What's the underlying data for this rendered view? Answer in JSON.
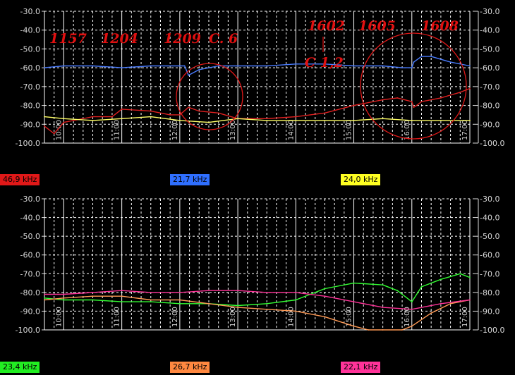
{
  "chart_data": [
    {
      "type": "line",
      "panel": "top",
      "ylim": [
        -100,
        -30
      ],
      "yticks": [
        "-30.0",
        "-40.0",
        "-50.0",
        "-60.0",
        "-70.0",
        "-80.0",
        "-90.0",
        "-100.0"
      ],
      "x_range": [
        "09:40",
        "17:00"
      ],
      "xticks": [
        "10:00",
        "11:00",
        "12:00",
        "13:00",
        "14:00",
        "15:00",
        "16:00",
        "17:00"
      ],
      "grid": true,
      "series": [
        {
          "name": "46,9 kHz",
          "color": "#e02020",
          "x": [
            "09:40",
            "09:50",
            "10:00",
            "10:10",
            "10:30",
            "10:50",
            "11:00",
            "11:30",
            "11:50",
            "12:00",
            "12:09",
            "12:20",
            "12:40",
            "13:00",
            "13:30",
            "14:00",
            "14:30",
            "15:00",
            "15:30",
            "15:45",
            "16:00",
            "16:02",
            "16:05",
            "16:10",
            "16:30",
            "16:50",
            "17:00"
          ],
          "y": [
            -91,
            -95,
            -89,
            -88,
            -86,
            -86,
            -82,
            -83,
            -85,
            -85,
            -81,
            -83,
            -84,
            -87,
            -87,
            -86,
            -84,
            -80,
            -77,
            -76,
            -78,
            -81,
            -80,
            -78,
            -76,
            -73,
            -71
          ]
        },
        {
          "name": "21,7 kHz",
          "color": "#4a7cff",
          "x": [
            "09:40",
            "10:00",
            "10:30",
            "11:00",
            "11:30",
            "12:00",
            "12:05",
            "12:09",
            "12:20",
            "12:40",
            "13:00",
            "13:30",
            "14:00",
            "14:30",
            "15:00",
            "15:30",
            "15:50",
            "16:00",
            "16:02",
            "16:10",
            "16:20",
            "16:40",
            "17:00"
          ],
          "y": [
            -60,
            -59,
            -59,
            -60,
            -59,
            -59,
            -59,
            -64,
            -61,
            -59,
            -59,
            -59,
            -58,
            -58,
            -59,
            -59,
            -60,
            -60,
            -57,
            -54,
            -54,
            -57,
            -59
          ]
        },
        {
          "name": "24,0 kHz",
          "color": "#ffff66",
          "x": [
            "09:40",
            "10:00",
            "10:30",
            "11:00",
            "11:30",
            "12:00",
            "12:30",
            "13:00",
            "13:30",
            "14:00",
            "14:30",
            "15:00",
            "15:30",
            "16:00",
            "16:30",
            "17:00"
          ],
          "y": [
            -86,
            -87,
            -88,
            -87,
            -86,
            -88,
            -89,
            -87,
            -88,
            -88,
            -88,
            -88,
            -87,
            -88,
            -88,
            -88
          ]
        }
      ],
      "annotations": [
        "1157",
        "1204",
        "1209",
        "C. 6",
        "1602",
        "1605",
        "1608",
        "C 1,2"
      ]
    },
    {
      "type": "line",
      "panel": "bottom",
      "ylim": [
        -100,
        -30
      ],
      "yticks": [
        "-30.0",
        "-40.0",
        "-50.0",
        "-60.0",
        "-70.0",
        "-80.0",
        "-90.0",
        "-100.0"
      ],
      "x_range": [
        "09:40",
        "17:00"
      ],
      "xticks": [
        "10:00",
        "11:00",
        "12:00",
        "13:00",
        "14:00",
        "15:00",
        "16:00",
        "17:00"
      ],
      "grid": true,
      "series": [
        {
          "name": "23,4 kHz",
          "color": "#33ff33",
          "x": [
            "09:40",
            "10:00",
            "10:30",
            "11:00",
            "11:30",
            "12:00",
            "12:30",
            "13:00",
            "13:30",
            "14:00",
            "14:30",
            "15:00",
            "15:30",
            "15:45",
            "16:00",
            "16:10",
            "16:30",
            "16:50",
            "17:00"
          ],
          "y": [
            -83,
            -84,
            -84,
            -85,
            -85,
            -86,
            -86,
            -87,
            -86,
            -84,
            -78,
            -75,
            -76,
            -79,
            -85,
            -77,
            -73,
            -70,
            -72
          ]
        },
        {
          "name": "26,7 kHz",
          "color": "#ff9a55",
          "x": [
            "09:40",
            "10:00",
            "10:30",
            "11:00",
            "11:30",
            "12:00",
            "12:30",
            "13:00",
            "13:30",
            "14:00",
            "14:30",
            "15:00",
            "15:15",
            "15:30",
            "15:50",
            "16:00",
            "16:20",
            "16:40",
            "17:00"
          ],
          "y": [
            -84,
            -83,
            -82,
            -82,
            -84,
            -84,
            -86,
            -88,
            -89,
            -90,
            -93,
            -98,
            -100,
            -100,
            -100,
            -98,
            -91,
            -86,
            -84
          ]
        },
        {
          "name": "22,1 kHz",
          "color": "#ff3399",
          "x": [
            "09:40",
            "10:00",
            "10:30",
            "11:00",
            "11:30",
            "12:00",
            "12:30",
            "13:00",
            "13:30",
            "14:00",
            "14:30",
            "15:00",
            "15:30",
            "16:00",
            "16:30",
            "17:00"
          ],
          "y": [
            -81,
            -81,
            -80,
            -79,
            -80,
            -80,
            -79,
            -79,
            -80,
            -80,
            -82,
            -85,
            -88,
            -89,
            -86,
            -84
          ]
        }
      ]
    }
  ]
}
